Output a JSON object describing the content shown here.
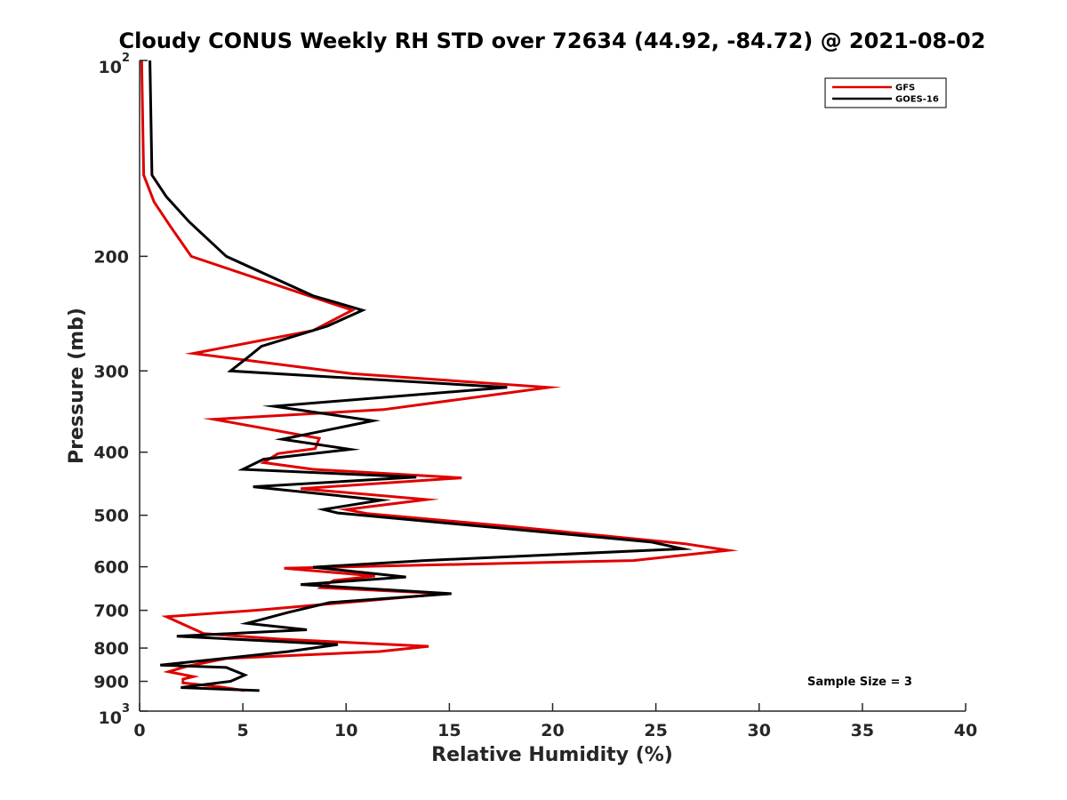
{
  "chart_data": {
    "type": "line",
    "title": "Cloudy CONUS Weekly RH STD over 72634 (44.92, -84.72) @ 2021-08-02",
    "xlabel": "Relative Humidity (%)",
    "ylabel": "Pressure (mb)",
    "xlim": [
      0,
      40
    ],
    "ylim": [
      100,
      1000
    ],
    "y_scale": "log",
    "y_reversed": true,
    "grid": false,
    "legend_position": "top-right",
    "x_ticks": [
      0,
      5,
      10,
      15,
      20,
      25,
      30,
      35,
      40
    ],
    "y_ticks": [
      {
        "value": 100,
        "label": "10",
        "exp": "2"
      },
      {
        "value": 200,
        "label": "200"
      },
      {
        "value": 300,
        "label": "300"
      },
      {
        "value": 400,
        "label": "400"
      },
      {
        "value": 500,
        "label": "500"
      },
      {
        "value": 600,
        "label": "600"
      },
      {
        "value": 700,
        "label": "700"
      },
      {
        "value": 800,
        "label": "800"
      },
      {
        "value": 900,
        "label": "900"
      },
      {
        "value": 1000,
        "label": "10",
        "exp": "3"
      }
    ],
    "annotation": "Sample Size = 3",
    "series": [
      {
        "name": "GFS",
        "color": "#e00000",
        "points": [
          [
            0.1,
            100
          ],
          [
            0.2,
            150
          ],
          [
            0.7,
            165
          ],
          [
            1.5,
            180
          ],
          [
            2.5,
            200
          ],
          [
            7.3,
            225
          ],
          [
            10.3,
            242
          ],
          [
            8.4,
            260
          ],
          [
            2.6,
            282
          ],
          [
            10.3,
            303
          ],
          [
            19.8,
            318
          ],
          [
            11.8,
            344
          ],
          [
            3.6,
            356
          ],
          [
            8.7,
            381
          ],
          [
            8.5,
            395
          ],
          [
            6.7,
            402
          ],
          [
            6.0,
            415
          ],
          [
            8.4,
            425
          ],
          [
            15.6,
            438
          ],
          [
            7.8,
            455
          ],
          [
            13.9,
            473
          ],
          [
            10.0,
            490
          ],
          [
            11.0,
            497
          ],
          [
            17.6,
            519
          ],
          [
            26.4,
            553
          ],
          [
            28.5,
            566
          ],
          [
            23.9,
            587
          ],
          [
            7.0,
            603
          ],
          [
            11.4,
            620
          ],
          [
            9.4,
            630
          ],
          [
            8.8,
            646
          ],
          [
            14.8,
            660
          ],
          [
            10.9,
            677
          ],
          [
            5.6,
            700
          ],
          [
            1.3,
            716
          ],
          [
            3.1,
            760
          ],
          [
            6.8,
            775
          ],
          [
            14.0,
            795
          ],
          [
            11.6,
            810
          ],
          [
            4.2,
            830
          ],
          [
            2.3,
            853
          ],
          [
            1.4,
            870
          ],
          [
            2.6,
            885
          ],
          [
            2.1,
            893
          ],
          [
            2.1,
            905
          ],
          [
            3.9,
            918
          ],
          [
            5.1,
            930
          ]
        ]
      },
      {
        "name": "GOES-16",
        "color": "#000000",
        "points": [
          [
            0.5,
            100
          ],
          [
            0.6,
            150
          ],
          [
            1.3,
            162
          ],
          [
            2.4,
            177
          ],
          [
            4.2,
            200
          ],
          [
            8.4,
            230
          ],
          [
            10.8,
            242
          ],
          [
            9.1,
            256
          ],
          [
            5.9,
            275
          ],
          [
            5.3,
            285
          ],
          [
            4.4,
            300
          ],
          [
            17.8,
            318
          ],
          [
            6.5,
            340
          ],
          [
            11.3,
            358
          ],
          [
            6.9,
            382
          ],
          [
            10.2,
            396
          ],
          [
            6.0,
            410
          ],
          [
            5.0,
            425
          ],
          [
            13.4,
            437
          ],
          [
            5.5,
            452
          ],
          [
            11.7,
            474
          ],
          [
            8.9,
            490
          ],
          [
            9.6,
            496
          ],
          [
            24.8,
            550
          ],
          [
            26.3,
            563
          ],
          [
            13.8,
            587
          ],
          [
            8.4,
            601
          ],
          [
            12.9,
            622
          ],
          [
            7.8,
            639
          ],
          [
            15.1,
            660
          ],
          [
            9.2,
            681
          ],
          [
            7.2,
            705
          ],
          [
            5.2,
            733
          ],
          [
            8.1,
            750
          ],
          [
            1.8,
            767
          ],
          [
            9.6,
            790
          ],
          [
            7.2,
            810
          ],
          [
            1.0,
            850
          ],
          [
            4.2,
            857
          ],
          [
            5.1,
            880
          ],
          [
            4.4,
            900
          ],
          [
            2.0,
            920
          ],
          [
            5.8,
            930
          ]
        ]
      }
    ]
  }
}
